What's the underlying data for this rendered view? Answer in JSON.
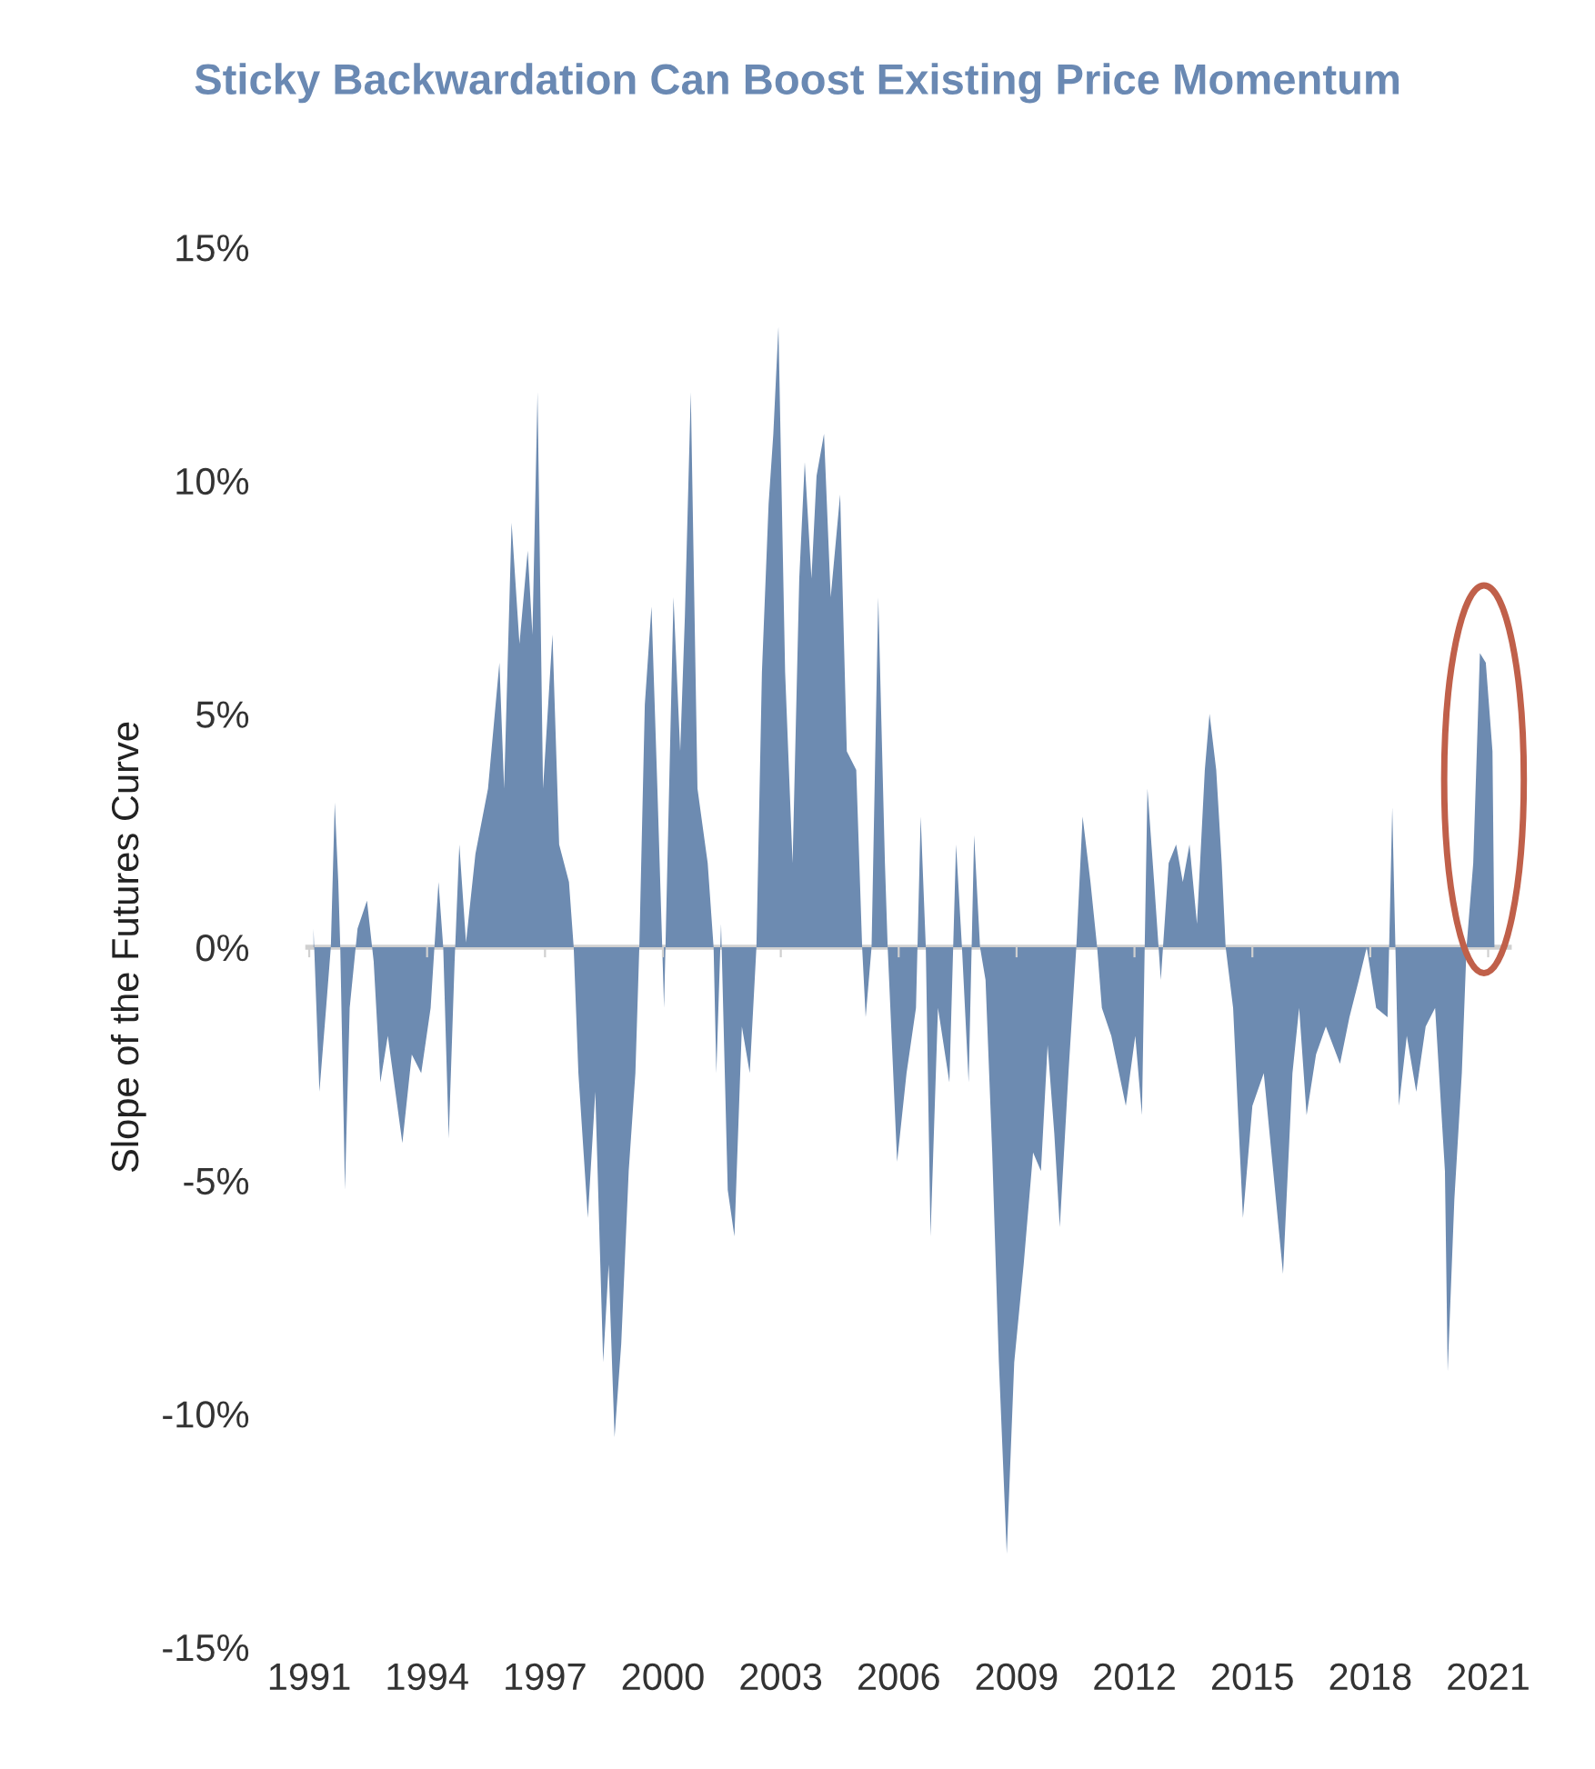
{
  "chart_data": {
    "type": "area",
    "title": "Sticky Backwardation Can Boost Existing Price Momentum",
    "ylabel": "Slope of the Futures Curve",
    "x": [
      1991.11,
      1991.26,
      1991.43,
      1991.55,
      1991.65,
      1991.74,
      1991.79,
      1991.91,
      1992.03,
      1992.23,
      1992.47,
      1992.64,
      1992.81,
      1993.0,
      1993.37,
      1993.61,
      1993.85,
      1994.09,
      1994.29,
      1994.41,
      1994.55,
      1994.7,
      1994.82,
      1994.99,
      1995.23,
      1995.55,
      1995.84,
      1995.96,
      1996.15,
      1996.35,
      1996.56,
      1996.68,
      1996.81,
      1996.95,
      1997.19,
      1997.36,
      1997.61,
      1997.73,
      1997.85,
      1998.09,
      1998.28,
      1998.48,
      1998.62,
      1998.77,
      1998.94,
      1999.13,
      1999.3,
      1999.4,
      1999.54,
      1999.71,
      1999.86,
      2000.03,
      2000.27,
      2000.44,
      2000.56,
      2000.71,
      2000.88,
      2001.14,
      2001.29,
      2001.36,
      2001.48,
      2001.65,
      2001.82,
      2002.01,
      2002.21,
      2002.38,
      2002.52,
      2002.69,
      2002.81,
      2002.94,
      2003.11,
      2003.3,
      2003.47,
      2003.61,
      2003.78,
      2003.91,
      2004.1,
      2004.27,
      2004.51,
      2004.68,
      2004.92,
      2005.07,
      2005.16,
      2005.31,
      2005.48,
      2005.65,
      2005.72,
      2005.96,
      2006.2,
      2006.44,
      2006.56,
      2006.69,
      2006.81,
      2007.0,
      2007.29,
      2007.46,
      2007.61,
      2007.78,
      2007.92,
      2008.07,
      2008.21,
      2008.38,
      2008.55,
      2008.75,
      2008.94,
      2009.18,
      2009.42,
      2009.62,
      2009.79,
      2009.96,
      2010.1,
      2010.32,
      2010.52,
      2010.68,
      2010.88,
      2011.05,
      2011.17,
      2011.41,
      2011.78,
      2012.02,
      2012.19,
      2012.26,
      2012.33,
      2012.5,
      2012.67,
      2012.87,
      2013.06,
      2013.23,
      2013.4,
      2013.59,
      2013.79,
      2013.91,
      2014.08,
      2014.22,
      2014.32,
      2014.51,
      2014.76,
      2015.0,
      2015.29,
      2015.53,
      2015.78,
      2016.02,
      2016.19,
      2016.38,
      2016.62,
      2016.87,
      2017.23,
      2017.47,
      2017.71,
      2017.91,
      2018.15,
      2018.44,
      2018.56,
      2018.64,
      2018.73,
      2018.93,
      2019.17,
      2019.41,
      2019.65,
      2019.9,
      2019.97,
      2020.14,
      2020.33,
      2020.45,
      2020.62,
      2020.79,
      2020.94,
      2021.11,
      2021.16
    ],
    "series": [
      {
        "color": "#6d8bb1",
        "values": [
          0.4,
          -3.1,
          -1.3,
          0,
          3.1,
          1.4,
          0,
          -5.2,
          -1.3,
          0.4,
          1.0,
          -0.3,
          -2.9,
          -1.9,
          -4.2,
          -2.3,
          -2.7,
          -1.3,
          1.4,
          0,
          -4.1,
          -0.3,
          2.2,
          0.1,
          2.0,
          3.4,
          6.1,
          3.4,
          9.1,
          6.5,
          8.5,
          6.7,
          11.9,
          3.4,
          6.7,
          2.2,
          1.4,
          0,
          -2.7,
          -5.8,
          -3.1,
          -8.9,
          -6.8,
          -10.5,
          -8.5,
          -4.8,
          -2.7,
          0,
          5.2,
          7.3,
          3.4,
          -1.3,
          7.5,
          4.2,
          7.1,
          11.9,
          3.4,
          1.8,
          0,
          -2.7,
          0.5,
          -5.2,
          -6.2,
          -1.7,
          -2.7,
          0,
          5.9,
          9.5,
          11.0,
          13.3,
          5.9,
          1.8,
          7.9,
          10.4,
          7.9,
          10.1,
          11.0,
          7.5,
          9.7,
          4.2,
          3.8,
          0,
          -1.5,
          0,
          7.5,
          1.8,
          0,
          -4.6,
          -2.7,
          -1.3,
          2.8,
          0,
          -6.2,
          -1.3,
          -2.9,
          2.2,
          0,
          -2.9,
          2.4,
          0,
          -0.7,
          -4.4,
          -8.9,
          -13.0,
          -8.9,
          -6.8,
          -4.4,
          -4.8,
          -2.1,
          -4.0,
          -6.0,
          -2.7,
          0,
          2.8,
          1.4,
          0,
          -1.3,
          -1.9,
          -3.4,
          -1.9,
          -3.6,
          0,
          3.4,
          1.4,
          -0.7,
          1.8,
          2.2,
          1.4,
          2.2,
          0.5,
          3.8,
          5.0,
          3.8,
          1.8,
          0,
          -1.3,
          -5.8,
          -3.4,
          -2.7,
          -4.8,
          -7.0,
          -2.7,
          -1.3,
          -3.6,
          -2.3,
          -1.7,
          -2.5,
          -1.5,
          -0.7,
          0,
          -1.3,
          -1.5,
          3.0,
          0,
          -3.4,
          -1.9,
          -3.1,
          -1.7,
          -1.3,
          -4.8,
          -9.1,
          -5.4,
          -2.7,
          0,
          1.8,
          6.3,
          6.1,
          4.2,
          0
        ]
      }
    ],
    "xlim": [
      1990.9,
      2021.6
    ],
    "xticks": [
      1991,
      1994,
      1997,
      2000,
      2003,
      2006,
      2009,
      2012,
      2015,
      2018,
      2021
    ],
    "ylim": [
      -15,
      15
    ],
    "yticks": [
      {
        "value": -15,
        "label": "-15%"
      },
      {
        "value": -10,
        "label": "-10%"
      },
      {
        "value": -5,
        "label": "-5%"
      },
      {
        "value": 0,
        "label": "0%"
      },
      {
        "value": 5,
        "label": "5%"
      },
      {
        "value": 10,
        "label": "10%"
      },
      {
        "value": 15,
        "label": "15%"
      }
    ],
    "ref_lines": [
      {
        "axis": "y",
        "value": 0,
        "color": "#d0d0d0"
      }
    ],
    "grid": false,
    "legend": false
  }
}
